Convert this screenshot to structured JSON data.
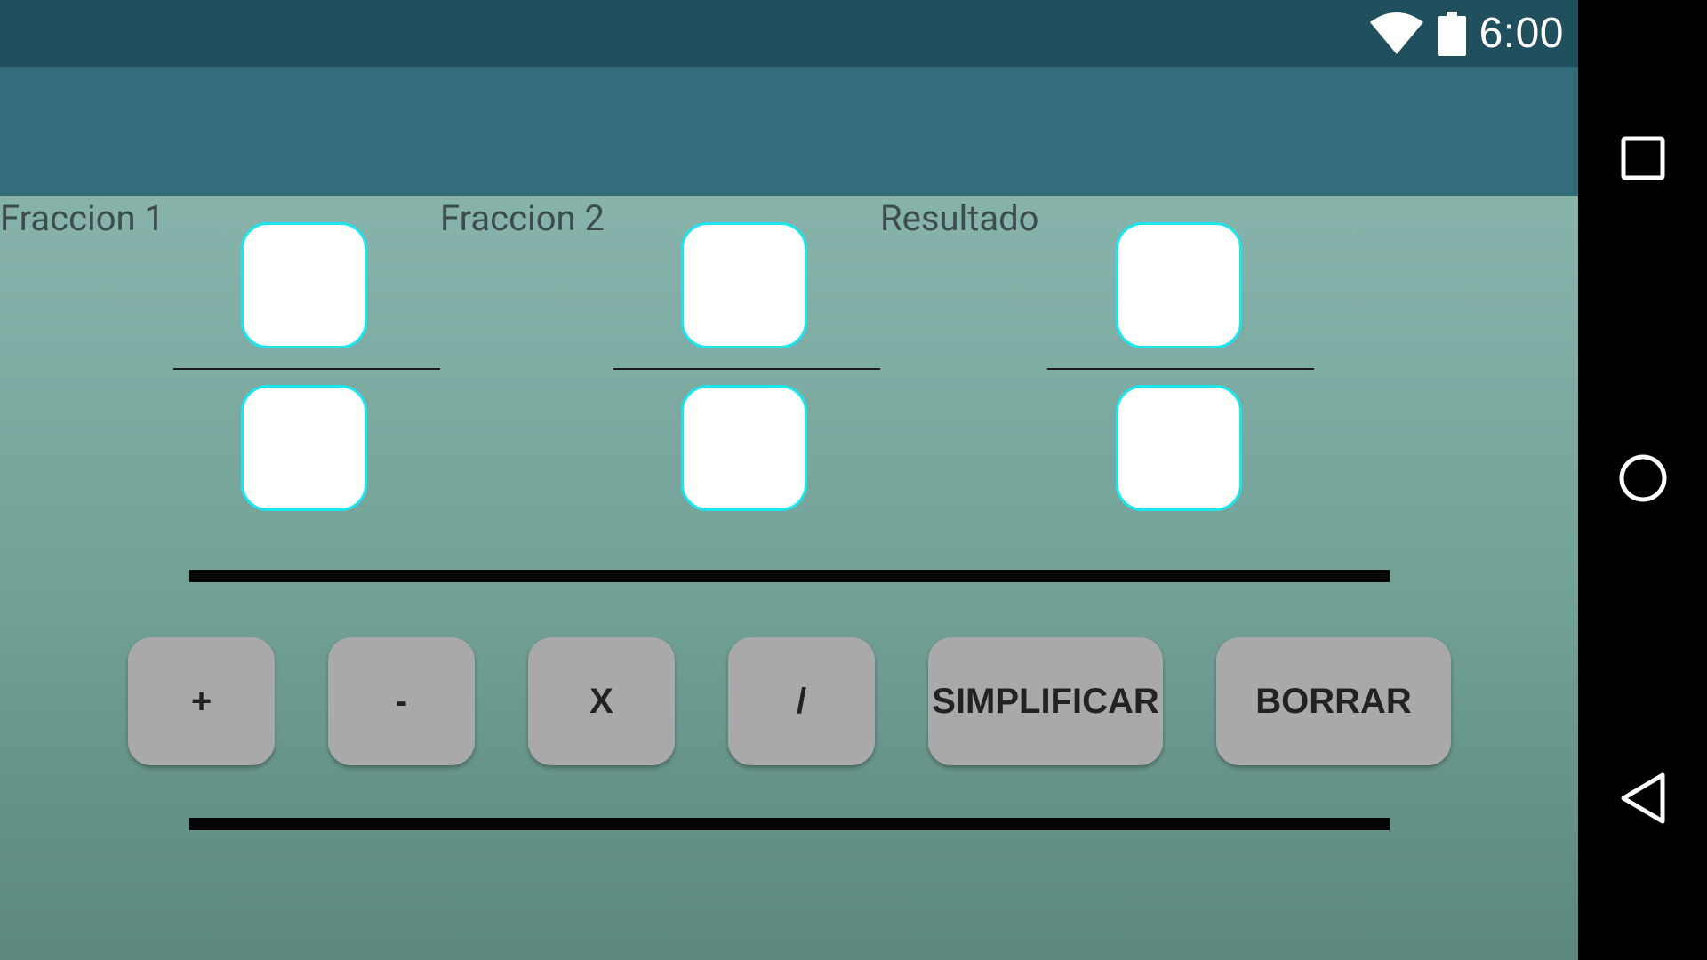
{
  "status_bar": {
    "time": "6:00",
    "icons": [
      "wifi-icon",
      "battery-icon"
    ],
    "color": "#204f5e"
  },
  "app_bar": {
    "title": "",
    "color": "#336d7b"
  },
  "fractions": [
    {
      "label": "Fraccion 1",
      "numerator": {
        "value": "",
        "placeholder": ""
      },
      "denominator": {
        "value": "",
        "placeholder": ""
      }
    },
    {
      "label": "Fraccion 2",
      "numerator": {
        "value": "",
        "placeholder": ""
      },
      "denominator": {
        "value": "",
        "placeholder": ""
      }
    },
    {
      "label": "Resultado",
      "numerator": {
        "value": "",
        "placeholder": ""
      },
      "denominator": {
        "value": "",
        "placeholder": ""
      }
    }
  ],
  "operations": {
    "add": "+",
    "subtract": "-",
    "multiply": "X",
    "divide": "/",
    "simplify": "SIMPLIFICAR",
    "clear": "BORRAR"
  },
  "navigation": {
    "icons": [
      "recents-square-icon",
      "home-circle-icon",
      "back-triangle-icon"
    ]
  },
  "colors": {
    "input_border": "#1be6ee",
    "button_bg": "#a9a9a9",
    "content_gradient_top": "#87b3ab",
    "content_gradient_bottom": "#5b877e"
  }
}
